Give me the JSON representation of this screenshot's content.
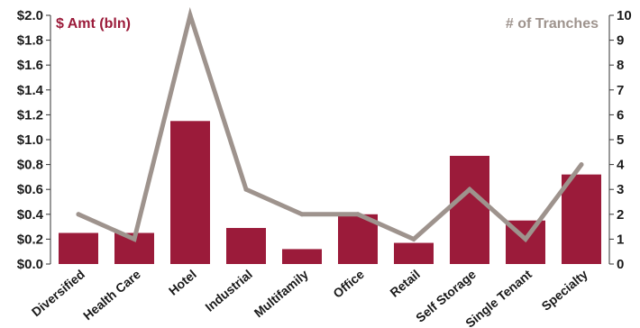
{
  "chart_data": {
    "type": "bar",
    "categories": [
      "Diversified",
      "Health Care",
      "Hotel",
      "Industrial",
      "Multifamily",
      "Office",
      "Retail",
      "Self Storage",
      "Single Tenant",
      "Specialty"
    ],
    "series": [
      {
        "name": "$ Amt (bln)",
        "type": "bar",
        "axis": "left",
        "values": [
          0.25,
          0.25,
          1.15,
          0.29,
          0.12,
          0.4,
          0.17,
          0.87,
          0.35,
          0.72
        ]
      },
      {
        "name": "# of Tranches",
        "type": "line",
        "axis": "right",
        "values": [
          2,
          1,
          10,
          3,
          2,
          2,
          1,
          3,
          1,
          4
        ]
      }
    ],
    "y_left": {
      "label": "$ Amt (bln)",
      "ylim": [
        0,
        2.0
      ],
      "ticks": [
        "$0.0",
        "$0.2",
        "$0.4",
        "$0.6",
        "$0.8",
        "$1.0",
        "$1.2",
        "$1.4",
        "$1.6",
        "$1.8",
        "$2.0"
      ]
    },
    "y_right": {
      "label": "# of Tranches",
      "ylim": [
        0,
        10
      ],
      "ticks": [
        "0",
        "1",
        "2",
        "3",
        "4",
        "5",
        "6",
        "7",
        "8",
        "9",
        "10"
      ]
    },
    "colors": {
      "bar": "#9b1b3a",
      "line": "#9e938d",
      "left_label": "#9b1b3a",
      "right_label": "#9e938d"
    },
    "grid": false
  }
}
